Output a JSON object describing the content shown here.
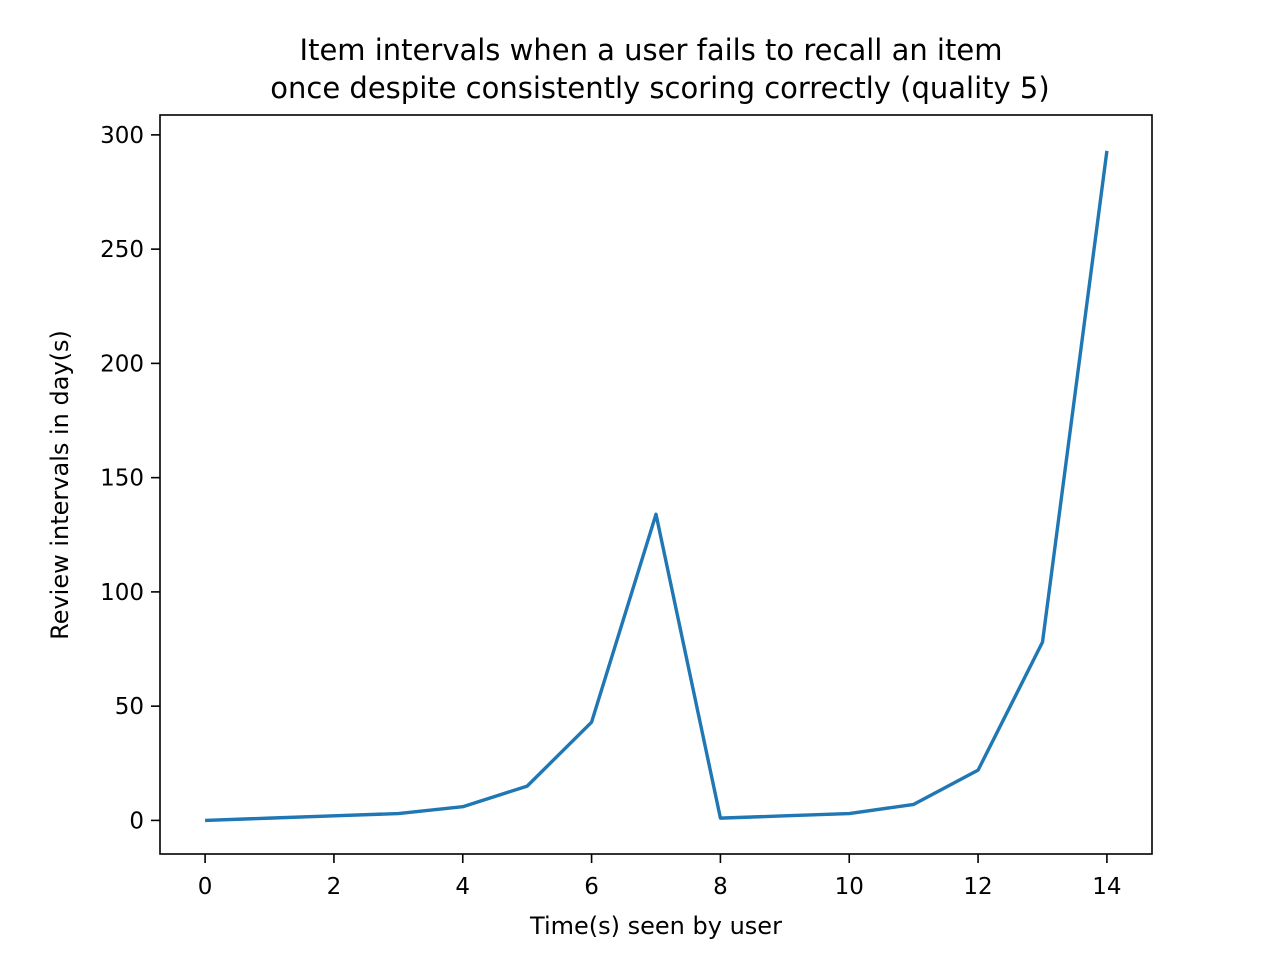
{
  "chart_data": {
    "type": "line",
    "title": [
      "Item intervals when a user fails to recall an item",
      "once despite consistently scoring correctly (quality 5)"
    ],
    "xlabel": "Time(s) seen by user",
    "ylabel": "Review intervals in day(s)",
    "xlim": [
      -0.7,
      14.7
    ],
    "ylim": [
      -14.7,
      308.7
    ],
    "xticks": [
      0,
      2,
      4,
      6,
      8,
      10,
      12,
      14
    ],
    "yticks": [
      0,
      50,
      100,
      150,
      200,
      250,
      300
    ],
    "grid": false,
    "series": [
      {
        "color": "#1f77b4",
        "x": [
          0,
          1,
          2,
          3,
          4,
          5,
          6,
          7,
          8,
          9,
          10,
          11,
          12,
          13,
          14
        ],
        "y": [
          0,
          1,
          2,
          3,
          6,
          15,
          43,
          134,
          1,
          2,
          3,
          7,
          22,
          78,
          293
        ]
      }
    ]
  }
}
